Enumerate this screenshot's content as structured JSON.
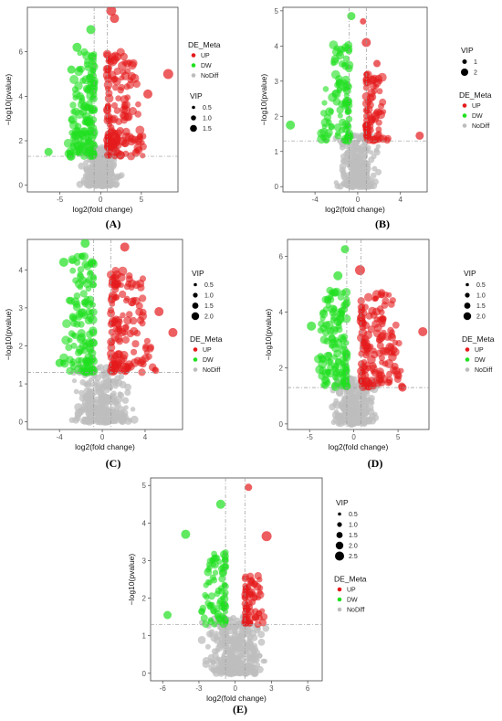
{
  "colors": {
    "up": "#e41a1c",
    "dw": "#1fe01f",
    "nodiff": "#bdbdbd",
    "guide": "#9a9a9a",
    "axis": "#444444"
  },
  "chart_data": [
    {
      "type": "scatter",
      "panel_label": "(A)",
      "xlabel": "log2(fold change)",
      "ylabel": "−log10(pvalue)",
      "xlim": [
        -9,
        9.5
      ],
      "ylim": [
        -0.3,
        8
      ],
      "xticks": [
        -5,
        0,
        5
      ],
      "yticks": [
        0,
        2,
        4,
        6
      ],
      "vlines": [
        -0.8,
        0.8
      ],
      "hline": 1.3,
      "legend_order": [
        "de",
        "vip"
      ],
      "legend": {
        "de_title": "DE_Meta",
        "de_items": [
          {
            "key": "up",
            "label": "UP"
          },
          {
            "key": "dw",
            "label": "DW"
          },
          {
            "key": "nodiff",
            "label": "NoDiff"
          }
        ],
        "vip_title": "VIP",
        "vip_items": [
          {
            "label": "0.5",
            "r": 1.8
          },
          {
            "label": "1.0",
            "r": 2.8
          },
          {
            "label": "1.5",
            "r": 3.8
          }
        ]
      },
      "highlights": [
        {
          "x": 1.3,
          "y": 7.85,
          "g": "up",
          "r": 5.5
        },
        {
          "x": 1.7,
          "y": 7.5,
          "g": "up",
          "r": 5
        },
        {
          "x": 8.3,
          "y": 5.0,
          "g": "up",
          "r": 5.5
        },
        {
          "x": 5.8,
          "y": 4.1,
          "g": "up",
          "r": 5
        },
        {
          "x": -1.2,
          "y": 7.0,
          "g": "dw",
          "r": 5
        },
        {
          "x": -2.9,
          "y": 6.2,
          "g": "dw",
          "r": 5
        },
        {
          "x": -6.4,
          "y": 1.5,
          "g": "dw",
          "r": 4.5
        },
        {
          "x": -3.6,
          "y": 5.2,
          "g": "dw",
          "r": 4.5
        }
      ],
      "clouds": [
        {
          "g": "nodiff",
          "n": 260,
          "x": [
            -2.8,
            2.8
          ],
          "y": [
            0,
            1.7
          ],
          "r": [
            3,
            4.5
          ],
          "seed": 11
        },
        {
          "g": "dw",
          "n": 150,
          "x": [
            -4.2,
            -0.8
          ],
          "y": [
            1.3,
            6.0
          ],
          "r": [
            3,
            5
          ],
          "seed": 12
        },
        {
          "g": "up",
          "n": 150,
          "x": [
            0.8,
            5.5
          ],
          "y": [
            1.3,
            6.0
          ],
          "r": [
            3,
            5
          ],
          "seed": 13
        }
      ]
    },
    {
      "type": "scatter",
      "panel_label": "(B)",
      "xlabel": "log2(fold change)",
      "ylabel": "−log10(pvalue)",
      "xlim": [
        -7,
        6.5
      ],
      "ylim": [
        -0.15,
        5.1
      ],
      "xticks": [
        -4,
        0,
        4
      ],
      "yticks": [
        0,
        1,
        2,
        3,
        4,
        5
      ],
      "vlines": [
        -0.8,
        0.8
      ],
      "hline": 1.3,
      "legend_order": [
        "vip",
        "de"
      ],
      "legend": {
        "de_title": "DE_Meta",
        "de_items": [
          {
            "key": "up",
            "label": "UP"
          },
          {
            "key": "dw",
            "label": "DW"
          },
          {
            "key": "nodiff",
            "label": "NoDiff"
          }
        ],
        "vip_title": "VIP",
        "vip_items": [
          {
            "label": "1",
            "r": 2.5
          },
          {
            "label": "2",
            "r": 4
          }
        ]
      },
      "highlights": [
        {
          "x": -0.6,
          "y": 4.85,
          "g": "dw",
          "r": 4.5
        },
        {
          "x": -6.3,
          "y": 1.75,
          "g": "dw",
          "r": 5
        },
        {
          "x": 0.8,
          "y": 4.1,
          "g": "up",
          "r": 5
        },
        {
          "x": 5.8,
          "y": 1.45,
          "g": "up",
          "r": 4.5
        },
        {
          "x": 0.5,
          "y": 4.7,
          "g": "up",
          "r": 3.5
        },
        {
          "x": 1.8,
          "y": 3.5,
          "g": "up",
          "r": 4
        }
      ],
      "clouds": [
        {
          "g": "nodiff",
          "n": 260,
          "x": [
            -2.3,
            2.3
          ],
          "y": [
            0,
            1.5
          ],
          "r": [
            2.5,
            4
          ],
          "seed": 21
        },
        {
          "g": "dw",
          "n": 95,
          "x": [
            -3.5,
            -0.8
          ],
          "y": [
            1.3,
            4.2
          ],
          "r": [
            3,
            5
          ],
          "seed": 22
        },
        {
          "g": "up",
          "n": 75,
          "x": [
            0.8,
            3.0
          ],
          "y": [
            1.3,
            3.2
          ],
          "r": [
            3,
            5
          ],
          "seed": 23
        }
      ]
    },
    {
      "type": "scatter",
      "panel_label": "(C)",
      "xlabel": "log2(fold change)",
      "ylabel": "−log10(pvalue)",
      "xlim": [
        -7,
        7.5
      ],
      "ylim": [
        -0.2,
        4.8
      ],
      "xticks": [
        -4,
        0,
        4
      ],
      "yticks": [
        0,
        1,
        2,
        3,
        4
      ],
      "vlines": [
        -0.8,
        0.8
      ],
      "hline": 1.3,
      "legend_order": [
        "vip",
        "de"
      ],
      "legend": {
        "de_title": "DE_Meta",
        "de_items": [
          {
            "key": "up",
            "label": "UP"
          },
          {
            "key": "dw",
            "label": "DW"
          },
          {
            "key": "nodiff",
            "label": "NoDiff"
          }
        ],
        "vip_title": "VIP",
        "vip_items": [
          {
            "label": "0.5",
            "r": 1.8
          },
          {
            "label": "1.0",
            "r": 2.6
          },
          {
            "label": "1.5",
            "r": 3.4
          },
          {
            "label": "2.0",
            "r": 4.2
          }
        ]
      },
      "highlights": [
        {
          "x": -1.6,
          "y": 4.7,
          "g": "dw",
          "r": 5
        },
        {
          "x": -4.0,
          "y": 1.55,
          "g": "dw",
          "r": 4.5
        },
        {
          "x": -3.6,
          "y": 4.2,
          "g": "dw",
          "r": 5
        },
        {
          "x": 2.1,
          "y": 4.6,
          "g": "up",
          "r": 5
        },
        {
          "x": 6.6,
          "y": 2.35,
          "g": "up",
          "r": 5
        },
        {
          "x": 5.3,
          "y": 2.9,
          "g": "up",
          "r": 5
        }
      ],
      "clouds": [
        {
          "g": "nodiff",
          "n": 260,
          "x": [
            -3.5,
            3.5
          ],
          "y": [
            0,
            1.5
          ],
          "r": [
            2.5,
            4.5
          ],
          "seed": 31
        },
        {
          "g": "dw",
          "n": 130,
          "x": [
            -3.8,
            -0.8
          ],
          "y": [
            1.3,
            4.4
          ],
          "r": [
            3,
            5
          ],
          "seed": 32
        },
        {
          "g": "up",
          "n": 140,
          "x": [
            0.8,
            5.2
          ],
          "y": [
            1.3,
            4.0
          ],
          "r": [
            3,
            5
          ],
          "seed": 33
        }
      ]
    },
    {
      "type": "scatter",
      "panel_label": "(D)",
      "xlabel": "log2(fold change)",
      "ylabel": "−log10(pvalue)",
      "xlim": [
        -7.5,
        8.5
      ],
      "ylim": [
        -0.2,
        6.6
      ],
      "xticks": [
        -5,
        0,
        5
      ],
      "yticks": [
        0,
        2,
        4,
        6
      ],
      "vlines": [
        -0.8,
        0.8
      ],
      "hline": 1.3,
      "legend_order": [
        "vip",
        "de"
      ],
      "legend": {
        "de_title": "DE_Meta",
        "de_items": [
          {
            "key": "up",
            "label": "UP"
          },
          {
            "key": "dw",
            "label": "DW"
          },
          {
            "key": "nodiff",
            "label": "NoDiff"
          }
        ],
        "vip_title": "VIP",
        "vip_items": [
          {
            "label": "0.5",
            "r": 1.8
          },
          {
            "label": "1.0",
            "r": 2.6
          },
          {
            "label": "1.5",
            "r": 3.4
          },
          {
            "label": "2.0",
            "r": 4.2
          }
        ]
      },
      "highlights": [
        {
          "x": -1.0,
          "y": 6.25,
          "g": "dw",
          "r": 4.5
        },
        {
          "x": 0.7,
          "y": 5.5,
          "g": "up",
          "r": 5.5
        },
        {
          "x": -1.8,
          "y": 5.3,
          "g": "dw",
          "r": 5
        },
        {
          "x": 7.8,
          "y": 3.3,
          "g": "up",
          "r": 5
        },
        {
          "x": 5.5,
          "y": 1.3,
          "g": "up",
          "r": 4.5
        },
        {
          "x": -4.8,
          "y": 3.5,
          "g": "dw",
          "r": 5
        }
      ],
      "clouds": [
        {
          "g": "nodiff",
          "n": 270,
          "x": [
            -3.0,
            3.0
          ],
          "y": [
            0,
            1.6
          ],
          "r": [
            2.5,
            4.5
          ],
          "seed": 41
        },
        {
          "g": "dw",
          "n": 130,
          "x": [
            -4.5,
            -0.8
          ],
          "y": [
            1.3,
            4.8
          ],
          "r": [
            3,
            5
          ],
          "seed": 42
        },
        {
          "g": "up",
          "n": 150,
          "x": [
            0.8,
            6.0
          ],
          "y": [
            1.3,
            4.7
          ],
          "r": [
            3,
            5
          ],
          "seed": 43
        }
      ]
    },
    {
      "type": "scatter",
      "panel_label": "(E)",
      "xlabel": "log2(fold change)",
      "ylabel": "−log10(pvalue)",
      "xlim": [
        -7,
        7.2
      ],
      "ylim": [
        -0.2,
        5.2
      ],
      "xticks": [
        -6,
        -3,
        0,
        3,
        6
      ],
      "yticks": [
        0,
        1,
        2,
        3,
        4,
        5
      ],
      "vlines": [
        -0.8,
        0.8
      ],
      "hline": 1.3,
      "legend_order": [
        "vip",
        "de"
      ],
      "legend": {
        "de_title": "DE_Meta",
        "de_items": [
          {
            "key": "up",
            "label": "UP"
          },
          {
            "key": "dw",
            "label": "DW"
          },
          {
            "key": "nodiff",
            "label": "NoDiff"
          }
        ],
        "vip_title": "VIP",
        "vip_items": [
          {
            "label": "0.5",
            "r": 1.8
          },
          {
            "label": "1.0",
            "r": 2.6
          },
          {
            "label": "1.5",
            "r": 3.4
          },
          {
            "label": "2.0",
            "r": 4.2
          },
          {
            "label": "2.5",
            "r": 5.0
          }
        ]
      },
      "highlights": [
        {
          "x": 1.1,
          "y": 4.95,
          "g": "up",
          "r": 4
        },
        {
          "x": -1.2,
          "y": 4.5,
          "g": "dw",
          "r": 5
        },
        {
          "x": -4.1,
          "y": 3.7,
          "g": "dw",
          "r": 5
        },
        {
          "x": 2.6,
          "y": 3.65,
          "g": "up",
          "r": 5.5
        },
        {
          "x": -5.6,
          "y": 1.55,
          "g": "dw",
          "r": 4.5
        }
      ],
      "clouds": [
        {
          "g": "nodiff",
          "n": 300,
          "x": [
            -3.2,
            3.2
          ],
          "y": [
            0,
            1.5
          ],
          "r": [
            2.5,
            4.5
          ],
          "seed": 51
        },
        {
          "g": "dw",
          "n": 85,
          "x": [
            -2.9,
            -0.8
          ],
          "y": [
            1.3,
            3.3
          ],
          "r": [
            3,
            4.5
          ],
          "seed": 52
        },
        {
          "g": "up",
          "n": 70,
          "x": [
            0.8,
            2.6
          ],
          "y": [
            1.3,
            2.6
          ],
          "r": [
            3,
            4.5
          ],
          "seed": 53
        }
      ]
    }
  ]
}
